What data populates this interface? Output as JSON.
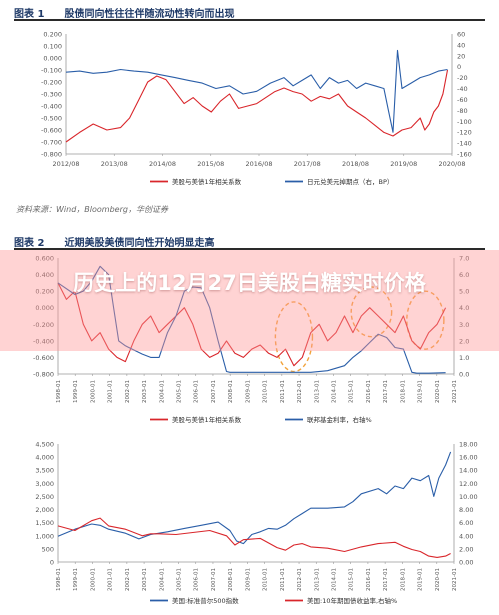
{
  "figures": {
    "fig1": {
      "title": "图表 1　　股债同向性往往伴随流动性转向而出现"
    },
    "fig2": {
      "title": "图表 2　　近期美股美债同向性开始明显走高"
    }
  },
  "source_text": "资料来源：Wind，Bloomberg，华创证券",
  "overlay_title": "历史上的12月27日美股白糖实时价格",
  "colors": {
    "red": "#d9262b",
    "blue": "#2a5ea8",
    "orange": "#f2a33a",
    "axis": "#555555"
  },
  "chart_data": [
    {
      "id": "chart1",
      "type": "line",
      "xticks": [
        "2012/08",
        "2013/08",
        "2014/08",
        "2015/08",
        "2016/08",
        "2017/08",
        "2018/08",
        "2019/08",
        "2020/08"
      ],
      "yticks_left": [
        "0.200",
        "0.100",
        "0.000",
        "-0.100",
        "-0.200",
        "-0.300",
        "-0.400",
        "-0.500",
        "-0.600",
        "-0.700",
        "-0.800"
      ],
      "yticks_right": [
        "60",
        "40",
        "20",
        "0",
        "-20",
        "-40",
        "-60",
        "-80",
        "-100",
        "-120",
        "-140",
        "-160"
      ],
      "ylim_left": [
        -0.8,
        0.2
      ],
      "ylim_right": [
        -160,
        60
      ],
      "xlim": [
        0,
        8.5
      ],
      "series": [
        {
          "name": "美股与美债1年相关系数",
          "axis": "left",
          "color": "#d9262b",
          "x": [
            0,
            0.3,
            0.6,
            0.9,
            1.2,
            1.4,
            1.6,
            1.8,
            2.0,
            2.2,
            2.4,
            2.6,
            2.8,
            3.0,
            3.2,
            3.4,
            3.6,
            3.8,
            4.0,
            4.2,
            4.4,
            4.6,
            4.8,
            5.0,
            5.2,
            5.4,
            5.6,
            5.8,
            6.0,
            6.2,
            6.4,
            6.6,
            6.8,
            7.0,
            7.2,
            7.4,
            7.6,
            7.8,
            7.9,
            8.0,
            8.1,
            8.2,
            8.3,
            8.4
          ],
          "y": [
            -0.7,
            -0.62,
            -0.55,
            -0.6,
            -0.58,
            -0.5,
            -0.35,
            -0.2,
            -0.15,
            -0.18,
            -0.28,
            -0.38,
            -0.33,
            -0.4,
            -0.45,
            -0.36,
            -0.3,
            -0.42,
            -0.4,
            -0.38,
            -0.33,
            -0.28,
            -0.25,
            -0.28,
            -0.3,
            -0.36,
            -0.32,
            -0.34,
            -0.3,
            -0.4,
            -0.45,
            -0.5,
            -0.56,
            -0.62,
            -0.65,
            -0.6,
            -0.58,
            -0.5,
            -0.6,
            -0.55,
            -0.45,
            -0.4,
            -0.3,
            -0.1
          ]
        },
        {
          "name": "日元兑美元掉期点（右，BP）",
          "axis": "right",
          "color": "#2a5ea8",
          "x": [
            0,
            0.3,
            0.6,
            0.9,
            1.2,
            1.5,
            1.8,
            2.1,
            2.4,
            2.7,
            3.0,
            3.3,
            3.6,
            3.9,
            4.2,
            4.5,
            4.8,
            5.0,
            5.2,
            5.4,
            5.6,
            5.8,
            6.0,
            6.2,
            6.4,
            6.6,
            6.8,
            7.0,
            7.1,
            7.2,
            7.3,
            7.4,
            7.6,
            7.8,
            8.0,
            8.2,
            8.4
          ],
          "y": [
            -10,
            -8,
            -12,
            -10,
            -5,
            -8,
            -10,
            -15,
            -20,
            -25,
            -30,
            -40,
            -35,
            -50,
            -45,
            -30,
            -20,
            -35,
            -25,
            -15,
            -40,
            -20,
            -30,
            -25,
            -40,
            -30,
            -35,
            -40,
            -80,
            -120,
            30,
            -40,
            -30,
            -20,
            -15,
            -8,
            -5
          ]
        }
      ]
    },
    {
      "id": "chart2",
      "type": "line",
      "xticks": [
        "1998-01",
        "1999-01",
        "2000-01",
        "2001-01",
        "2002-01",
        "2003-01",
        "2004-01",
        "2005-01",
        "2006-01",
        "2007-01",
        "2008-01",
        "2009-01",
        "2010-01",
        "2011-01",
        "2012-01",
        "2013-01",
        "2014-01",
        "2015-01",
        "2016-01",
        "2017-01",
        "2018-01",
        "2019-01",
        "2020-01",
        "2021-01"
      ],
      "yticks_left": [
        "0.600",
        "0.400",
        "0.200",
        "0.000",
        "-0.200",
        "-0.400",
        "-0.600",
        "-0.800"
      ],
      "yticks_right": [
        "7.0",
        "6.0",
        "5.0",
        "4.0",
        "3.0",
        "2.0",
        "1.0",
        "0.0"
      ],
      "ylim_left": [
        -0.8,
        0.6
      ],
      "ylim_right": [
        0,
        7
      ],
      "xlim": [
        0,
        23.5
      ],
      "highlight_ellipses": [
        {
          "x": 14.0,
          "y": -0.35,
          "rx": 1.1,
          "ry": 0.42
        },
        {
          "x": 18.6,
          "y": -0.05,
          "rx": 1.2,
          "ry": 0.3
        },
        {
          "x": 21.8,
          "y": -0.15,
          "rx": 1.1,
          "ry": 0.35
        }
      ],
      "series": [
        {
          "name": "美股与美债1年相关系数",
          "axis": "left",
          "color": "#d9262b",
          "x": [
            0,
            0.5,
            1,
            1.5,
            2,
            2.5,
            3,
            3.5,
            4,
            4.5,
            5,
            5.5,
            6,
            6.5,
            7,
            7.5,
            8,
            8.5,
            9,
            9.5,
            10,
            10.5,
            11,
            11.5,
            12,
            12.5,
            13,
            13.5,
            14,
            14.5,
            15,
            15.5,
            16,
            16.5,
            17,
            17.5,
            18,
            18.5,
            19,
            19.5,
            20,
            20.5,
            21,
            21.5,
            22,
            22.5,
            23
          ],
          "y": [
            0.3,
            0.1,
            0.2,
            -0.2,
            -0.4,
            -0.3,
            -0.5,
            -0.6,
            -0.65,
            -0.4,
            -0.2,
            -0.1,
            -0.3,
            -0.2,
            -0.1,
            0.0,
            -0.2,
            -0.5,
            -0.6,
            -0.55,
            -0.4,
            -0.55,
            -0.6,
            -0.5,
            -0.45,
            -0.55,
            -0.6,
            -0.5,
            -0.7,
            -0.6,
            -0.3,
            -0.2,
            -0.4,
            -0.3,
            -0.1,
            -0.3,
            -0.1,
            0.0,
            -0.1,
            -0.2,
            -0.3,
            -0.1,
            -0.4,
            -0.5,
            -0.3,
            -0.2,
            0.0
          ]
        },
        {
          "name": "联邦基金利率，右轴%",
          "axis": "right",
          "color": "#2a5ea8",
          "x": [
            0,
            1,
            1.5,
            2,
            2.5,
            3,
            3.3,
            3.6,
            4,
            5,
            5.5,
            6,
            6.5,
            7,
            7.5,
            8,
            8.5,
            9,
            9.5,
            10,
            10.2,
            10.5,
            11,
            12,
            13,
            14,
            15,
            16,
            17,
            17.5,
            18,
            18.5,
            19,
            19.5,
            20,
            20.5,
            21,
            21.3,
            22,
            23
          ],
          "y": [
            5.5,
            4.8,
            5.0,
            5.6,
            6.5,
            6.0,
            4.0,
            2.0,
            1.7,
            1.2,
            1.0,
            1.0,
            2.5,
            3.5,
            5.0,
            5.25,
            5.2,
            4.0,
            2.0,
            0.15,
            0.1,
            0.1,
            0.1,
            0.1,
            0.1,
            0.1,
            0.1,
            0.2,
            0.5,
            1.0,
            1.4,
            1.9,
            2.4,
            2.2,
            1.6,
            1.5,
            0.1,
            0.05,
            0.05,
            0.08
          ]
        }
      ]
    },
    {
      "id": "chart3",
      "type": "line",
      "xticks": [
        "1998-01",
        "1999-01",
        "2000-01",
        "2001-01",
        "2002-01",
        "2003-01",
        "2004-01",
        "2005-01",
        "2006-01",
        "2007-01",
        "2008-01",
        "2009-01",
        "2010-01",
        "2011-01",
        "2012-01",
        "2013-01",
        "2014-01",
        "2015-01",
        "2016-01",
        "2017-01",
        "2018-01",
        "2019-01",
        "2020-01",
        "2021-01"
      ],
      "yticks_left": [
        "4,500",
        "4,000",
        "3,500",
        "3,000",
        "2,500",
        "2,000",
        "1,500",
        "1,000",
        "500",
        "0"
      ],
      "yticks_right": [
        "18.00",
        "16.00",
        "14.00",
        "12.00",
        "10.00",
        "8.00",
        "6.00",
        "4.00",
        "2.00",
        "0.00"
      ],
      "ylim_left": [
        0,
        4500
      ],
      "ylim_right": [
        0,
        18
      ],
      "xlim": [
        0,
        23.5
      ],
      "series": [
        {
          "name": "美国:标准普尔500指数",
          "axis": "left",
          "color": "#2a5ea8",
          "x": [
            0,
            1,
            2,
            2.5,
            3,
            4,
            4.8,
            5.5,
            6.5,
            7.5,
            8.5,
            9.5,
            10.2,
            10.6,
            11,
            11.5,
            12,
            12.5,
            13,
            13.5,
            14,
            14.5,
            15,
            16,
            17,
            17.5,
            18,
            19,
            19.5,
            20,
            20.5,
            21,
            21.5,
            22,
            22.3,
            22.6,
            23,
            23.3
          ],
          "y": [
            980,
            1250,
            1450,
            1400,
            1250,
            1100,
            880,
            1050,
            1150,
            1280,
            1400,
            1520,
            1200,
            800,
            700,
            1050,
            1150,
            1280,
            1250,
            1400,
            1650,
            1850,
            2050,
            2050,
            2100,
            2300,
            2600,
            2800,
            2600,
            2900,
            2800,
            3200,
            3100,
            3300,
            2500,
            3200,
            3700,
            4200
          ]
        },
        {
          "name": "美国:10年期国债收益率,右轴%",
          "axis": "right",
          "color": "#d9262b",
          "x": [
            0,
            1,
            2,
            2.5,
            3,
            4,
            5,
            5.5,
            6,
            7,
            8,
            9,
            10,
            10.5,
            11,
            12,
            13,
            13.5,
            14,
            14.5,
            15,
            16,
            17,
            18,
            19,
            20,
            20.5,
            21,
            21.5,
            22,
            22.5,
            23,
            23.3
          ],
          "y": [
            5.5,
            4.8,
            6.3,
            6.7,
            5.5,
            5.0,
            4.0,
            4.3,
            4.3,
            4.2,
            4.5,
            4.8,
            4.0,
            2.6,
            3.4,
            3.6,
            2.2,
            1.8,
            2.6,
            2.8,
            2.3,
            2.1,
            1.6,
            2.3,
            2.8,
            3.0,
            2.4,
            1.9,
            1.6,
            0.9,
            0.7,
            0.9,
            1.3
          ]
        }
      ]
    }
  ]
}
